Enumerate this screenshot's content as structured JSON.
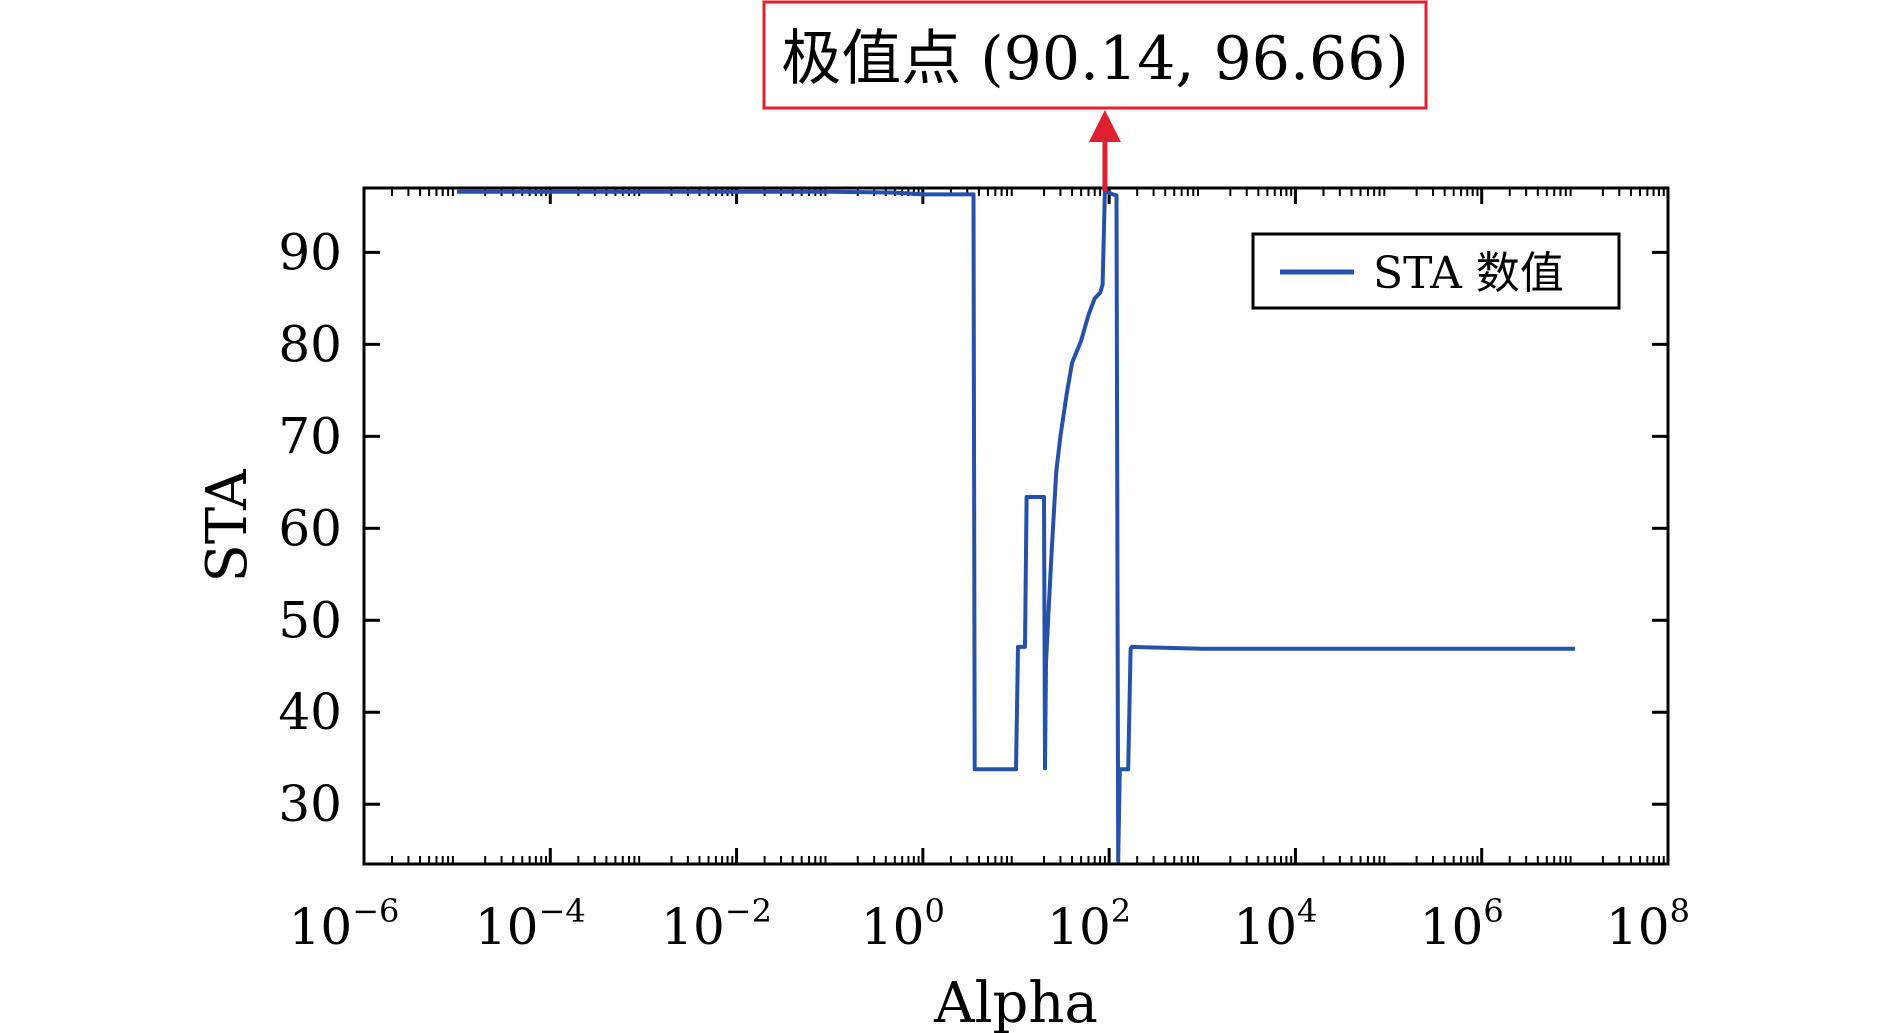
{
  "chart_data": {
    "type": "line",
    "xlabel": "Alpha",
    "ylabel": "STA",
    "x_scale": "log",
    "x_ticks": [
      {
        "value": 1e-06,
        "base": "10",
        "exp": "−6"
      },
      {
        "value": 0.0001,
        "base": "10",
        "exp": "−4"
      },
      {
        "value": 0.01,
        "base": "10",
        "exp": "−2"
      },
      {
        "value": 1,
        "base": "10",
        "exp": "0"
      },
      {
        "value": 100,
        "base": "10",
        "exp": "2"
      },
      {
        "value": 10000.0,
        "base": "10",
        "exp": "4"
      },
      {
        "value": 1000000.0,
        "base": "10",
        "exp": "6"
      },
      {
        "value": 100000000.0,
        "base": "10",
        "exp": "8"
      }
    ],
    "xlim": [
      1e-06,
      100000000.0
    ],
    "ylim": [
      23.5,
      97
    ],
    "y_ticks": [
      "30",
      "40",
      "50",
      "60",
      "70",
      "80",
      "90"
    ],
    "grid": false,
    "legend_position": "top-right",
    "series": [
      {
        "name": "STA 数值",
        "color": "#2651a8",
        "x": [
          1e-05,
          0.1,
          0.5,
          1,
          3.5,
          3.6,
          10,
          10.5,
          12.5,
          13,
          13.5,
          20,
          20.5,
          21,
          22.5,
          24,
          27,
          30,
          35,
          40,
          50,
          60,
          70,
          80,
          85,
          90.14,
          100,
          110,
          120,
          125,
          130,
          140,
          160,
          170,
          175,
          1000,
          10000000.0
        ],
        "y": [
          96.6,
          96.6,
          96.5,
          96.3,
          96.3,
          33.8,
          33.8,
          47.1,
          47.1,
          63.4,
          63.4,
          63.4,
          33.9,
          45.4,
          51.5,
          57,
          66.1,
          70,
          74.6,
          78,
          80.4,
          83.2,
          85,
          85.6,
          86.5,
          96.66,
          96.5,
          96.3,
          96.2,
          23.8,
          33.8,
          33.8,
          33.8,
          46.9,
          47.1,
          46.9,
          46.9
        ]
      }
    ],
    "annotation": {
      "text": "极值点 (90.14, 96.66)",
      "x": 90.14,
      "y": 96.66,
      "color": "#e02030"
    }
  }
}
